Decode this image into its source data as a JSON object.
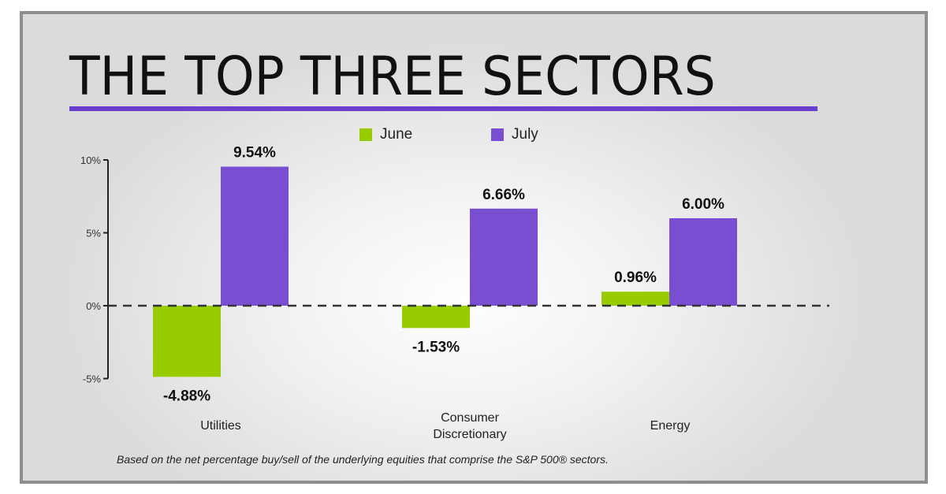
{
  "title": "THE TOP THREE SECTORS",
  "footnote": "Based on the net percentage buy/sell of the underlying equities that comprise the S&P 500® sectors.",
  "colors": {
    "june": "#99cc00",
    "july": "#7a4ed1",
    "accent": "#6a3fd0"
  },
  "chart_data": {
    "type": "bar",
    "title": "THE TOP THREE SECTORS",
    "categories": [
      "Utilities",
      "Consumer Discretionary",
      "Energy"
    ],
    "series": [
      {
        "name": "June",
        "values": [
          -4.88,
          -1.53,
          0.96
        ],
        "labels": [
          "-4.88%",
          "-1.53%",
          "0.96%"
        ]
      },
      {
        "name": "July",
        "values": [
          9.54,
          6.66,
          6.0
        ],
        "labels": [
          "9.54%",
          "6.66%",
          "6.00%"
        ]
      }
    ],
    "yticks": [
      "10%",
      "5%",
      "0%",
      "-5%"
    ],
    "ytick_values": [
      10,
      5,
      0,
      -5
    ],
    "ylim": [
      -5,
      10
    ],
    "legend": "top",
    "zero_line": "dashed",
    "grid": false
  }
}
